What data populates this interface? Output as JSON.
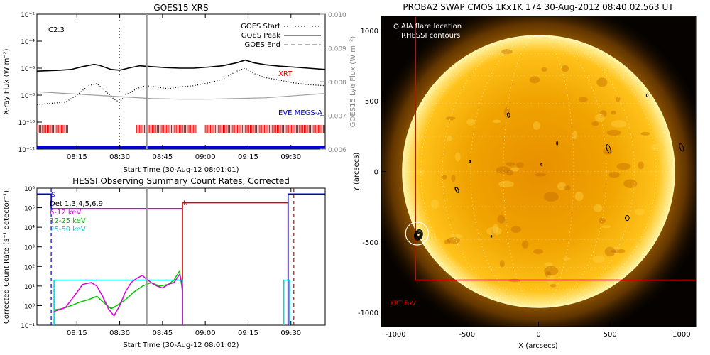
{
  "chart_data": [
    {
      "type": "line",
      "title": "GOES15 XRS",
      "xlabel": "Start Time (30-Aug-12 08:01:01)",
      "ylabel": "X-ray Flux (W m⁻²)",
      "ylabel_right": "GOES15 Lyα Flux (W m⁻²)",
      "x_ticks": [
        "08:15",
        "08:30",
        "08:45",
        "09:00",
        "09:15",
        "09:30"
      ],
      "x_tick_minutes": [
        14,
        29,
        44,
        59,
        74,
        89
      ],
      "xlim_minutes": [
        0,
        101
      ],
      "y_scale": "log",
      "ylim": [
        1e-12,
        0.01
      ],
      "y_ticks": [
        "10⁻¹²",
        "10⁻¹⁰",
        "10⁻⁸",
        "10⁻⁶",
        "10⁻⁴",
        "10⁻²"
      ],
      "y_tick_values": [
        1e-12,
        1e-10,
        1e-08,
        1e-06,
        0.0001,
        0.01
      ],
      "ylim_right": [
        0.006,
        0.01
      ],
      "y_ticks_right": [
        "0.006",
        "0.007",
        "0.008",
        "0.009",
        "0.010"
      ],
      "y_tick_values_right": [
        0.006,
        0.007,
        0.008,
        0.009,
        0.01
      ],
      "annotation": "C2.3",
      "legend": {
        "placement": "top-right",
        "entries": [
          "GOES Start",
          "GOES Peak",
          "GOES End"
        ]
      },
      "series_labels": [
        "XRT",
        "EVE MEGS-A"
      ],
      "colors": {
        "long": "#000000",
        "short": "#000000",
        "lya": "#a0a0a0",
        "xrt": "#dd0000",
        "eve": "#0000dd"
      },
      "markers_minutes": {
        "goes_start": 29,
        "goes_peak": 38.5
      },
      "long": {
        "x": [
          0,
          4,
          8,
          12,
          16,
          20,
          22,
          26,
          29,
          32,
          36,
          40,
          45,
          50,
          55,
          60,
          65,
          70,
          73,
          76,
          80,
          85,
          90,
          95,
          101
        ],
        "y": [
          6e-07,
          6.5e-07,
          7e-07,
          8e-07,
          1.3e-06,
          1.9e-06,
          1.6e-06,
          8e-07,
          7e-07,
          1e-06,
          1.5e-06,
          1.3e-06,
          1.1e-06,
          1e-06,
          1e-06,
          1.2e-06,
          1.5e-06,
          2.5e-06,
          4e-06,
          2.5e-06,
          1.8e-06,
          1.4e-06,
          1.2e-06,
          1e-06,
          8e-07
        ]
      },
      "short": {
        "x": [
          0,
          5,
          10,
          14,
          18,
          21,
          24,
          27,
          29,
          31,
          35,
          38,
          42,
          46,
          50,
          55,
          60,
          65,
          70,
          73,
          76,
          80,
          85,
          90,
          95,
          101
        ],
        "y": [
          2e-09,
          2.5e-09,
          3e-09,
          1e-08,
          5e-08,
          7e-08,
          2e-08,
          5e-09,
          3e-09,
          1e-08,
          3e-08,
          5e-08,
          4e-08,
          3e-08,
          4e-08,
          5e-08,
          8e-08,
          1.5e-07,
          6e-07,
          1e-06,
          4e-07,
          2e-07,
          1.3e-07,
          8e-08,
          6e-08,
          5e-08
        ]
      },
      "lya": {
        "x": [
          0,
          10,
          20,
          30,
          40,
          50,
          60,
          70,
          80,
          90,
          101
        ],
        "y": [
          0.0077,
          0.00765,
          0.0076,
          0.00755,
          0.0075,
          0.00748,
          0.00748,
          0.0075,
          0.00752,
          0.00758,
          0.00765
        ]
      },
      "eve_level": 1e-12,
      "xrt_segments_minutes": [
        [
          0,
          11
        ],
        [
          35,
          56
        ],
        [
          59,
          101
        ]
      ],
      "xrt_level": 3e-11
    },
    {
      "type": "line",
      "title": "HESSI Observing Summary Count Rates, Corrected",
      "xlabel": "Start Time (30-Aug-12 08:01:02)",
      "ylabel": "Corrected Count Rate (s⁻¹ detector⁻¹)",
      "x_ticks": [
        "08:15",
        "08:30",
        "08:45",
        "09:00",
        "09:15",
        "09:30"
      ],
      "x_tick_minutes": [
        14,
        29,
        44,
        59,
        74,
        89
      ],
      "xlim_minutes": [
        0,
        101
      ],
      "y_scale": "log",
      "ylim": [
        0.1,
        1000000
      ],
      "y_ticks": [
        "10⁻¹",
        "10⁰",
        "10¹",
        "10²",
        "10³",
        "10⁴",
        "10⁵",
        "10⁶"
      ],
      "y_tick_values": [
        0.1,
        1,
        10,
        100,
        1000,
        10000,
        100000,
        1000000
      ],
      "legend": {
        "placement": "top-left",
        "entries": [
          "Det 1,3,4,5,6,9",
          "6-12 keV",
          "12-25 keV",
          "25-50 keV"
        ]
      },
      "flag_labels": [
        "S",
        "N"
      ],
      "colors": {
        "det": "#000000",
        "low": "#dd00dd",
        "mid": "#00cc00",
        "high": "#00dddd",
        "saa": "#0000cc",
        "night": "#dd0000"
      },
      "saa_level": 500000,
      "night_level": 180000,
      "low_level_flag": 90000,
      "intervals_minutes": {
        "saa_end": 5,
        "night_start": 51,
        "night_end": 88,
        "day_end": 94
      },
      "dashed_lines_minutes": [
        5,
        90
      ],
      "marker_minutes": 38.5,
      "low": {
        "x": [
          6,
          10,
          13,
          16,
          19,
          21,
          23,
          25,
          27,
          29,
          31,
          33,
          35,
          37,
          38,
          40,
          42,
          44,
          46,
          48,
          50,
          51
        ],
        "y": [
          0.5,
          0.8,
          3,
          12,
          15,
          10,
          3,
          0.7,
          0.3,
          1,
          5,
          15,
          25,
          35,
          25,
          15,
          10,
          8,
          12,
          15,
          40,
          10
        ]
      },
      "mid": {
        "x": [
          6,
          9,
          12,
          15,
          18,
          21,
          24,
          26,
          28,
          31,
          34,
          37,
          40,
          43,
          46,
          48,
          50,
          51
        ],
        "y": [
          0.6,
          0.7,
          1,
          1.5,
          2,
          3,
          1.2,
          0.7,
          1,
          2,
          5,
          10,
          15,
          10,
          12,
          20,
          60,
          5
        ]
      },
      "high_level": 20,
      "high_segments_minutes": [
        [
          6,
          51
        ],
        [
          86.5,
          88.5
        ]
      ]
    },
    {
      "type": "heatmap",
      "title": "PROBA2 SWAP CMOS 1Kx1K 174  30-Aug-2012 08:40:02.563 UT",
      "xlabel": "X (arcsecs)",
      "ylabel": "Y (arcsecs)",
      "xlim": [
        -1100,
        1100
      ],
      "ylim": [
        -1100,
        1100
      ],
      "x_ticks": [
        -1000,
        -500,
        0,
        500,
        1000
      ],
      "y_ticks": [
        -1000,
        -500,
        0,
        500,
        1000
      ],
      "legend": {
        "placement": "top-left",
        "entries": [
          "AIA flare location",
          "RHESSI contours"
        ]
      },
      "fov_label": "XRT FoV",
      "solar_radius_arcsec": 950,
      "xrt_fov": {
        "x_min": -860,
        "x_max": 1100,
        "y_min": -770,
        "y_max": 1100
      },
      "flare_location": {
        "x": -850,
        "y": -440,
        "r": 80
      },
      "rhessi_contours": [
        {
          "x": -840,
          "y": -450,
          "rx": 28,
          "ry": 38,
          "rot": 20,
          "levels": 5
        },
        {
          "x": -570,
          "y": -130,
          "rx": 10,
          "ry": 22,
          "rot": -30,
          "levels": 2
        },
        {
          "x": 490,
          "y": 160,
          "rx": 12,
          "ry": 32,
          "rot": -20,
          "levels": 1
        },
        {
          "x": 1000,
          "y": 170,
          "rx": 12,
          "ry": 28,
          "rot": -20,
          "levels": 1
        },
        {
          "x": 620,
          "y": -330,
          "rx": 14,
          "ry": 18,
          "rot": 0,
          "levels": 1
        },
        {
          "x": -210,
          "y": 400,
          "rx": 9,
          "ry": 16,
          "rot": -10,
          "levels": 1
        },
        {
          "x": 130,
          "y": 200,
          "rx": 5,
          "ry": 12,
          "rot": 0,
          "levels": 1
        },
        {
          "x": 20,
          "y": 50,
          "rx": 4,
          "ry": 8,
          "rot": 0,
          "levels": 1
        },
        {
          "x": -480,
          "y": 70,
          "rx": 4,
          "ry": 8,
          "rot": 0,
          "levels": 1
        },
        {
          "x": -330,
          "y": -460,
          "rx": 4,
          "ry": 6,
          "rot": 0,
          "levels": 1
        },
        {
          "x": 760,
          "y": 540,
          "rx": 6,
          "ry": 10,
          "rot": 0,
          "levels": 1
        }
      ],
      "colors": {
        "fov": "#dd0000",
        "sun": "#f0a800",
        "background": "#000000"
      }
    }
  ]
}
